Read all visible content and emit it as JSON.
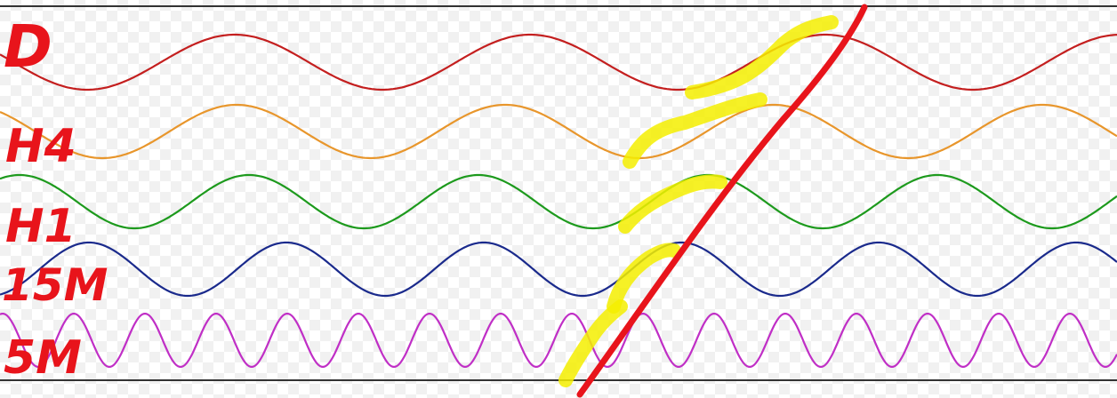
{
  "labels": {
    "d": "D",
    "h4": "H4",
    "h1": "H1",
    "m15": "15M",
    "m5": "5M"
  },
  "colors": {
    "d": "#c41f1f",
    "h4": "#e8962c",
    "h1": "#1d9a1d",
    "m15": "#1a2a8c",
    "m5": "#c02fc6",
    "highlight": "#f4ee00",
    "slash": "#e8141b",
    "frame": "#333333"
  }
}
